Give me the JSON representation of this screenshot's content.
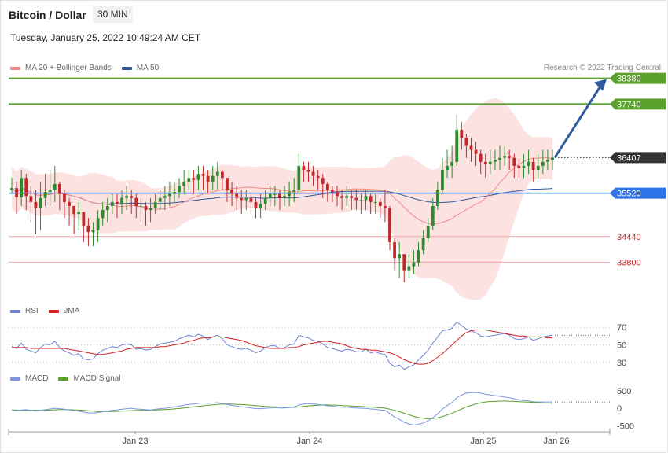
{
  "header": {
    "title": "Bitcoin / Dollar",
    "interval": "30 MIN",
    "datetime": "Tuesday, January 25, 2022 10:49:24 AM CET",
    "credit": "Research © 2022 Trading Central"
  },
  "colors": {
    "ma20": "#f08a8a",
    "ma50": "#2f5596",
    "band_fill": "#fde2e2",
    "resistance": "#5aa02c",
    "pivot": "#2e73e8",
    "support": "#f4a5a5",
    "last": "#333333",
    "candle_up": "#2e8b2e",
    "candle_down": "#c0282a",
    "rsi": "#6b82d6",
    "rsi_ma": "#d42020",
    "macd": "#7b96e0",
    "macd_signal": "#5aa02c",
    "arrow": "#2f5b9e"
  },
  "chart_data": [
    {
      "type": "candlestick",
      "legend": [
        "MA 20 + Bollinger Bands",
        "MA 50"
      ],
      "ylim": [
        32300,
        39000
      ],
      "x_labels": [
        "Jan 23",
        "Jan 24",
        "Jan 25",
        "Jan 26"
      ],
      "levels": [
        {
          "value": 38380,
          "label": "38380",
          "kind": "resistance"
        },
        {
          "value": 37740,
          "label": "37740",
          "kind": "resistance"
        },
        {
          "value": 36407,
          "label": "36407",
          "kind": "last"
        },
        {
          "value": 35520,
          "label": "35520",
          "kind": "pivot"
        },
        {
          "value": 34440,
          "label": "34440",
          "kind": "support"
        },
        {
          "value": 33800,
          "label": "33800",
          "kind": "support"
        }
      ],
      "close": [
        35650,
        35420,
        35900,
        35450,
        35300,
        35150,
        35400,
        35550,
        35600,
        35750,
        35500,
        35300,
        35200,
        35000,
        35050,
        34700,
        34550,
        34600,
        34900,
        35100,
        35200,
        35300,
        35250,
        35400,
        35450,
        35400,
        35200,
        35200,
        35100,
        35150,
        35300,
        35400,
        35450,
        35500,
        35550,
        35700,
        35800,
        35900,
        35850,
        36000,
        35950,
        35800,
        35950,
        36050,
        35900,
        35600,
        35500,
        35400,
        35350,
        35400,
        35300,
        35150,
        35250,
        35400,
        35500,
        35500,
        35400,
        35450,
        35550,
        35600,
        36200,
        36100,
        36050,
        35950,
        35900,
        35750,
        35600,
        35550,
        35450,
        35400,
        35450,
        35400,
        35350,
        35350,
        35450,
        35300,
        35300,
        35200,
        35150,
        34300,
        33900,
        34000,
        33600,
        33700,
        33800,
        34100,
        34400,
        34700,
        35200,
        35600,
        36100,
        36200,
        36300,
        37100,
        36900,
        36700,
        36600,
        36500,
        36300,
        36250,
        36300,
        36350,
        36400,
        36450,
        36400,
        36200,
        36150,
        36200,
        36300,
        36100,
        36200,
        36300,
        36350,
        36407
      ],
      "range": [
        [
          35500,
          35900
        ],
        [
          35000,
          35800
        ],
        [
          35200,
          36100
        ],
        [
          35100,
          36000
        ],
        [
          34800,
          35700
        ],
        [
          34500,
          35600
        ],
        [
          34600,
          35800
        ],
        [
          35200,
          36000
        ],
        [
          35200,
          36100
        ],
        [
          35300,
          36200
        ],
        [
          35100,
          35800
        ],
        [
          34900,
          35600
        ],
        [
          34700,
          35400
        ],
        [
          34500,
          35200
        ],
        [
          34600,
          35300
        ],
        [
          34300,
          35000
        ],
        [
          34200,
          34900
        ],
        [
          34200,
          34800
        ],
        [
          34300,
          35100
        ],
        [
          34700,
          35300
        ],
        [
          34800,
          35400
        ],
        [
          35000,
          35500
        ],
        [
          34900,
          35500
        ],
        [
          35000,
          35600
        ],
        [
          35100,
          35700
        ],
        [
          35000,
          35600
        ],
        [
          34900,
          35500
        ],
        [
          34800,
          35400
        ],
        [
          34700,
          35300
        ],
        [
          34800,
          35400
        ],
        [
          35000,
          35500
        ],
        [
          35100,
          35600
        ],
        [
          35100,
          35700
        ],
        [
          35200,
          35800
        ],
        [
          35300,
          35800
        ],
        [
          35400,
          35900
        ],
        [
          35500,
          36100
        ],
        [
          35600,
          36100
        ],
        [
          35500,
          36100
        ],
        [
          35600,
          36200
        ],
        [
          35600,
          36200
        ],
        [
          35500,
          36100
        ],
        [
          35600,
          36200
        ],
        [
          35600,
          36300
        ],
        [
          35600,
          36100
        ],
        [
          35300,
          35900
        ],
        [
          35200,
          35800
        ],
        [
          35100,
          35700
        ],
        [
          35000,
          35600
        ],
        [
          35100,
          35600
        ],
        [
          35000,
          35500
        ],
        [
          34900,
          35400
        ],
        [
          34900,
          35500
        ],
        [
          35100,
          35600
        ],
        [
          35200,
          35700
        ],
        [
          35200,
          35700
        ],
        [
          35100,
          35600
        ],
        [
          35200,
          35700
        ],
        [
          35200,
          35800
        ],
        [
          35300,
          35900
        ],
        [
          35500,
          36500
        ],
        [
          35800,
          36300
        ],
        [
          35800,
          36300
        ],
        [
          35700,
          36200
        ],
        [
          35600,
          36100
        ],
        [
          35400,
          36000
        ],
        [
          35300,
          35800
        ],
        [
          35300,
          35700
        ],
        [
          35200,
          35700
        ],
        [
          35100,
          35600
        ],
        [
          35200,
          35700
        ],
        [
          35100,
          35600
        ],
        [
          35100,
          35600
        ],
        [
          35000,
          35500
        ],
        [
          35100,
          35600
        ],
        [
          35000,
          35500
        ],
        [
          35000,
          35500
        ],
        [
          34900,
          35400
        ],
        [
          34800,
          35600
        ],
        [
          34100,
          35200
        ],
        [
          33600,
          34400
        ],
        [
          33400,
          34300
        ],
        [
          33300,
          33900
        ],
        [
          33400,
          34000
        ],
        [
          33500,
          34100
        ],
        [
          33700,
          34300
        ],
        [
          34000,
          34600
        ],
        [
          34300,
          34900
        ],
        [
          34600,
          35400
        ],
        [
          35100,
          35800
        ],
        [
          35500,
          36400
        ],
        [
          35900,
          36600
        ],
        [
          35900,
          36700
        ],
        [
          36200,
          37500
        ],
        [
          36600,
          37300
        ],
        [
          36400,
          37000
        ],
        [
          36300,
          36900
        ],
        [
          36200,
          36800
        ],
        [
          36000,
          36600
        ],
        [
          35900,
          36500
        ],
        [
          36000,
          36600
        ],
        [
          36100,
          36600
        ],
        [
          36100,
          36700
        ],
        [
          36200,
          36700
        ],
        [
          36100,
          36600
        ],
        [
          35900,
          36500
        ],
        [
          35900,
          36400
        ],
        [
          35900,
          36500
        ],
        [
          36000,
          36600
        ],
        [
          35800,
          36400
        ],
        [
          35900,
          36500
        ],
        [
          36000,
          36600
        ],
        [
          36100,
          36600
        ],
        [
          36100,
          36600
        ]
      ]
    },
    {
      "type": "line",
      "legend": [
        "RSI",
        "9MA"
      ],
      "ylim": [
        20,
        80
      ],
      "ticks": [
        30,
        50,
        70
      ],
      "series": [
        {
          "name": "RSI",
          "values": [
            48,
            46,
            52,
            45,
            43,
            41,
            47,
            51,
            50,
            54,
            47,
            43,
            41,
            38,
            40,
            34,
            33,
            34,
            40,
            44,
            46,
            48,
            47,
            50,
            51,
            50,
            45,
            46,
            44,
            45,
            48,
            51,
            52,
            53,
            54,
            57,
            59,
            61,
            59,
            62,
            60,
            56,
            59,
            61,
            57,
            50,
            48,
            46,
            45,
            46,
            44,
            41,
            43,
            47,
            49,
            49,
            46,
            47,
            50,
            51,
            61,
            59,
            58,
            55,
            54,
            51,
            47,
            46,
            44,
            43,
            45,
            44,
            42,
            42,
            45,
            41,
            42,
            40,
            39,
            29,
            25,
            27,
            22,
            25,
            27,
            33,
            38,
            44,
            52,
            59,
            66,
            67,
            69,
            76,
            72,
            68,
            66,
            64,
            60,
            59,
            60,
            61,
            62,
            63,
            61,
            57,
            56,
            57,
            59,
            55,
            57,
            59,
            60,
            61
          ]
        },
        {
          "name": "9MA",
          "values": [
            47,
            47,
            47,
            47,
            46,
            46,
            46,
            46,
            46,
            46,
            46,
            46,
            45,
            44,
            43,
            42,
            41,
            40,
            39,
            39,
            40,
            41,
            42,
            43,
            45,
            46,
            47,
            47,
            47,
            47,
            47,
            48,
            48,
            49,
            50,
            51,
            52,
            54,
            55,
            57,
            58,
            58,
            59,
            59,
            59,
            58,
            57,
            56,
            55,
            53,
            51,
            49,
            48,
            47,
            46,
            46,
            46,
            46,
            47,
            47,
            48,
            50,
            51,
            52,
            53,
            54,
            54,
            53,
            52,
            51,
            49,
            47,
            46,
            45,
            45,
            44,
            44,
            43,
            42,
            41,
            39,
            36,
            33,
            31,
            29,
            28,
            28,
            29,
            32,
            36,
            40,
            45,
            50,
            55,
            60,
            64,
            66,
            67,
            67,
            67,
            66,
            65,
            64,
            63,
            62,
            61,
            60,
            60,
            59,
            59,
            59,
            59,
            58,
            58
          ]
        }
      ]
    },
    {
      "type": "line",
      "legend": [
        "MACD",
        "MACD Signal"
      ],
      "ylim": [
        -650,
        700
      ],
      "ticks": [
        -500,
        0,
        500
      ],
      "series": [
        {
          "name": "MACD",
          "values": [
            -60,
            -70,
            -50,
            -40,
            -60,
            -80,
            -60,
            -40,
            -20,
            0,
            -10,
            -30,
            -50,
            -70,
            -80,
            -110,
            -130,
            -140,
            -120,
            -100,
            -80,
            -60,
            -50,
            -30,
            -10,
            0,
            -20,
            -30,
            -40,
            -50,
            -30,
            -10,
            0,
            20,
            40,
            60,
            90,
            110,
            120,
            140,
            150,
            140,
            150,
            160,
            140,
            110,
            80,
            60,
            40,
            30,
            10,
            -10,
            -10,
            0,
            10,
            20,
            10,
            10,
            20,
            30,
            100,
            120,
            130,
            120,
            110,
            90,
            70,
            60,
            40,
            30,
            30,
            20,
            10,
            0,
            0,
            -20,
            -30,
            -50,
            -60,
            -150,
            -250,
            -320,
            -400,
            -450,
            -480,
            -460,
            -420,
            -360,
            -270,
            -160,
            -20,
            80,
            160,
            300,
            380,
            430,
            450,
            450,
            430,
            400,
            380,
            360,
            340,
            320,
            300,
            270,
            240,
            220,
            210,
            190,
            180,
            180,
            180,
            180
          ]
        },
        {
          "name": "MACD Signal",
          "values": [
            -50,
            -52,
            -53,
            -52,
            -53,
            -56,
            -57,
            -56,
            -51,
            -44,
            -38,
            -38,
            -40,
            -45,
            -51,
            -61,
            -72,
            -83,
            -91,
            -94,
            -94,
            -92,
            -88,
            -82,
            -74,
            -67,
            -62,
            -58,
            -54,
            -52,
            -48,
            -43,
            -36,
            -28,
            -18,
            -6,
            10,
            25,
            40,
            55,
            70,
            84,
            96,
            108,
            117,
            120,
            118,
            113,
            106,
            97,
            87,
            74,
            63,
            53,
            46,
            40,
            33,
            27,
            25,
            25,
            38,
            53,
            69,
            80,
            89,
            93,
            94,
            91,
            85,
            78,
            71,
            64,
            57,
            50,
            43,
            35,
            26,
            15,
            3,
            -24,
            -59,
            -98,
            -142,
            -187,
            -232,
            -265,
            -288,
            -298,
            -293,
            -272,
            -236,
            -193,
            -143,
            -82,
            -21,
            36,
            84,
            124,
            157,
            180,
            193,
            200,
            205,
            205,
            202,
            197,
            190,
            183,
            177,
            170,
            162,
            155,
            148,
            142
          ]
        }
      ]
    }
  ]
}
